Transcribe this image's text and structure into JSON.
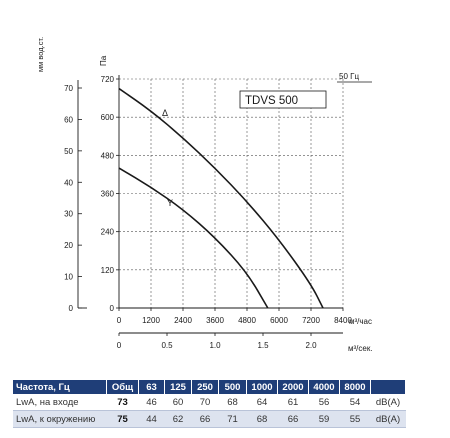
{
  "chart_data": {
    "type": "line",
    "model_label": "TDVS 500",
    "frequency_label": "50 Гц",
    "left_axis_label": "мм вод.ст.",
    "pa_axis_label": "Па",
    "x_unit_label": "м³/час",
    "x2_unit_label": "м³/сек.",
    "y_mm_ticks": [
      "0",
      "10",
      "20",
      "30",
      "40",
      "50",
      "60",
      "70"
    ],
    "y_pa_ticks": [
      "0",
      "120",
      "240",
      "360",
      "480",
      "600",
      "720"
    ],
    "x_ticks": [
      "0",
      "1200",
      "2400",
      "3600",
      "4800",
      "6000",
      "7200",
      "8400"
    ],
    "x2_ticks": [
      "0",
      "0.5",
      "1.0",
      "1.5",
      "2.0"
    ],
    "xlim": [
      0,
      8400
    ],
    "ylim": [
      0,
      720
    ],
    "x2lim": [
      0,
      2.3333
    ],
    "grid": true,
    "series": [
      {
        "name": "Δ",
        "x": [
          0,
          1200,
          2400,
          3600,
          4800,
          6000,
          7200,
          7650
        ],
        "y": [
          690,
          620,
          535,
          440,
          335,
          215,
          75,
          0
        ]
      },
      {
        "name": "Y",
        "x": [
          0,
          1200,
          2400,
          3600,
          4800,
          5580
        ],
        "y": [
          440,
          380,
          310,
          222,
          112,
          0
        ]
      }
    ]
  },
  "table": {
    "headers": [
      "Частота, Гц",
      "Общ",
      "63",
      "125",
      "250",
      "500",
      "1000",
      "2000",
      "4000",
      "8000",
      ""
    ],
    "rows": [
      [
        "LwA, на входе",
        "73",
        "46",
        "60",
        "70",
        "68",
        "64",
        "61",
        "56",
        "54",
        "dB(A)"
      ],
      [
        "LwA, к окружению",
        "75",
        "44",
        "62",
        "66",
        "71",
        "68",
        "66",
        "59",
        "55",
        "dB(A)"
      ]
    ]
  }
}
